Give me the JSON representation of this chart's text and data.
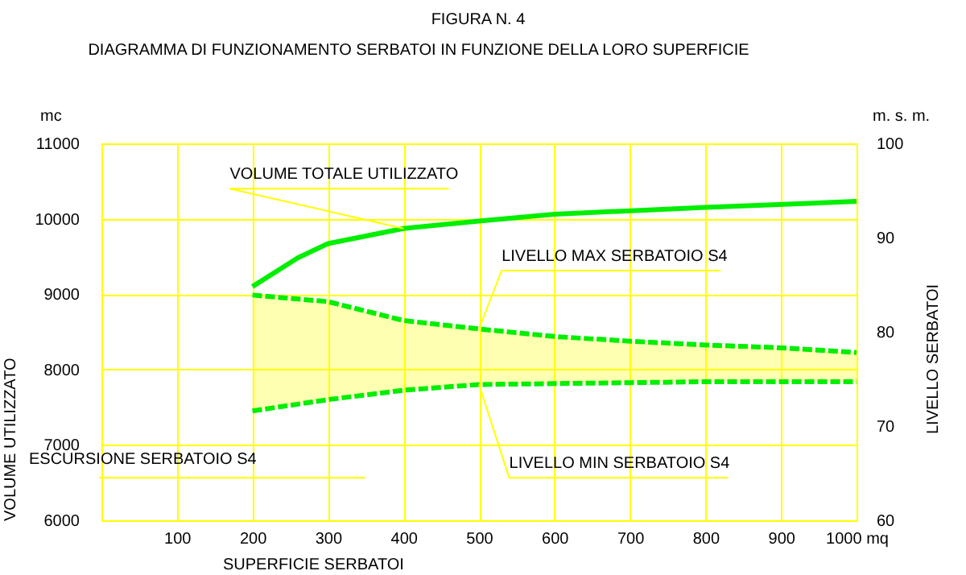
{
  "chart_data": {
    "type": "line",
    "title": "FIGURA N. 4",
    "subtitle": "DIAGRAMMA DI FUNZIONAMENTO SERBATOI IN FUNZIONE DELLA LORO SUPERFICIE",
    "xlabel": "SUPERFICIE SERBATOI",
    "ylabel": "VOLUME UTILIZZATO",
    "y2label": "LIVELLO SERBATOI",
    "annotations": [
      "mc",
      "m. s. m.",
      "ESCURSIONE SERBATOIO S4"
    ],
    "xlim": [
      0,
      1000
    ],
    "xticks": [
      100,
      200,
      300,
      400,
      500,
      600,
      700,
      800,
      900,
      {
        "value": 1000,
        "label": "1000 mq"
      }
    ],
    "ylim": [
      6000,
      11000
    ],
    "yticks": [
      6000,
      7000,
      8000,
      9000,
      10000,
      11000
    ],
    "y2lim": [
      60,
      100
    ],
    "y2ticks": [
      60,
      70,
      80,
      90,
      100
    ],
    "grid": true,
    "marker": "none",
    "series": [
      {
        "name": "VOLUME TOTALE UTILIZZATO",
        "color": "#00ee00",
        "line_style": "solid",
        "x": [
          200,
          260,
          300,
          400,
          500,
          600,
          800,
          1000
        ],
        "values": [
          9100,
          9480,
          9670,
          9870,
          9970,
          10060,
          10150,
          10230
        ]
      },
      {
        "name": "LIVELLO MAX SERBATOIO S4",
        "color": "#00ee00",
        "line_style": "dashed",
        "axis": "y2",
        "x": [
          200,
          300,
          400,
          500,
          600,
          700,
          800,
          900,
          1000
        ],
        "values": [
          83.9,
          83.2,
          81.2,
          80.3,
          79.5,
          79.0,
          78.6,
          78.3,
          77.8
        ],
        "lower": [
          71.6,
          72.8,
          73.8,
          74.4,
          74.5,
          74.6,
          74.7,
          74.7,
          74.7
        ],
        "upper": [
          83.9,
          83.2,
          81.2,
          80.3,
          79.5,
          79.0,
          78.6,
          78.3,
          77.8
        ]
      },
      {
        "name": "LIVELLO MIN SERBATOIO S4",
        "color": "#00ee00",
        "line_style": "dashed",
        "axis": "y2",
        "x": [
          200,
          300,
          400,
          500,
          600,
          700,
          800,
          900,
          1000
        ],
        "values": [
          71.6,
          72.8,
          73.8,
          74.4,
          74.5,
          74.6,
          74.7,
          74.7,
          74.7
        ]
      }
    ]
  }
}
